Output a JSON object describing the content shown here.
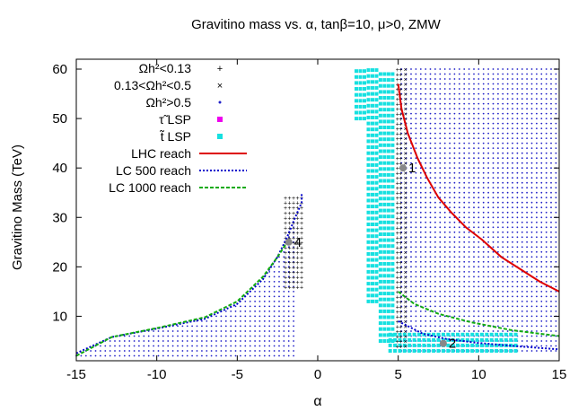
{
  "chart_data": {
    "type": "scatter",
    "title": "Gravitino mass vs. α, tanβ=10, μ>0, ZMW",
    "xlabel": "α",
    "ylabel": "Gravitino Mass (TeV)",
    "xlim": [
      -15,
      15
    ],
    "ylim": [
      1,
      62
    ],
    "xticks": [
      "-15",
      "-10",
      "-5",
      "0",
      "5",
      "10",
      "15"
    ],
    "yticks": [
      "10",
      "20",
      "30",
      "40",
      "50",
      "60"
    ],
    "grid": false,
    "legend_position": "top-left",
    "legend": [
      {
        "label": "Ωh²<0.13",
        "color": "#e3242b",
        "marker": "plus"
      },
      {
        "label": "0.13<Ωh²<0.5",
        "color": "#2bbf2b",
        "marker": "cross"
      },
      {
        "label": "Ωh²>0.5",
        "color": "#2020c8",
        "marker": "dot"
      },
      {
        "label": "τ̃ LSP",
        "color": "#ee00ee",
        "marker": "square"
      },
      {
        "label": "t̃ LSP",
        "color": "#16e0e0",
        "marker": "square"
      },
      {
        "label": "LHC reach",
        "color": "#dd0000",
        "marker": "line"
      },
      {
        "label": "LC 500 reach",
        "color": "#0000cc",
        "marker": "dotted-line"
      },
      {
        "label": "LC 1000 reach",
        "color": "#11aa11",
        "marker": "dashed-line"
      }
    ],
    "series": [
      {
        "name": "LHC reach",
        "color": "#dd0000",
        "x": [
          5.0,
          5.2,
          5.6,
          6.2,
          6.8,
          7.5,
          8.3,
          9.2,
          10.2,
          11.4,
          12.6,
          13.8,
          15.0
        ],
        "y": [
          57,
          52,
          47,
          42,
          38,
          34,
          31,
          28,
          25.5,
          22,
          19.5,
          17,
          15
        ]
      },
      {
        "name": "LC 500 reach",
        "color": "#0000cc",
        "x": [
          -15,
          -12.8,
          -10,
          -7,
          -5,
          -3.4,
          -2.5,
          -1.9,
          -1.4,
          -1.0,
          -1.0
        ],
        "y": [
          2.5,
          5.8,
          7.5,
          9.5,
          12.5,
          17.5,
          22,
          26,
          30,
          33,
          35
        ]
      },
      {
        "name": "LC 500 reach (right)",
        "color": "#0000cc",
        "x": [
          5.0,
          6.5,
          8.0,
          10.0,
          12.5,
          15.0
        ],
        "y": [
          9.0,
          6.5,
          5.4,
          4.6,
          3.9,
          3.3
        ]
      },
      {
        "name": "LC 1000 reach",
        "color": "#11aa11",
        "x": [
          -15,
          -12.8,
          -10,
          -7,
          -5,
          -3.4,
          -2.5,
          -1.9
        ],
        "y": [
          2.0,
          5.8,
          7.6,
          9.8,
          13,
          18,
          22,
          25
        ]
      },
      {
        "name": "LC 1000 reach (right)",
        "color": "#11aa11",
        "x": [
          5.0,
          6.0,
          7.5,
          9.5,
          12.0,
          15.0
        ],
        "y": [
          15.0,
          12.5,
          10.5,
          8.8,
          7.2,
          6.0
        ]
      }
    ],
    "points": [
      {
        "label": "1",
        "x": 5.3,
        "y": 40
      },
      {
        "label": "2",
        "x": 7.8,
        "y": 4.5
      },
      {
        "label": "4",
        "x": -1.8,
        "y": 25
      }
    ]
  }
}
